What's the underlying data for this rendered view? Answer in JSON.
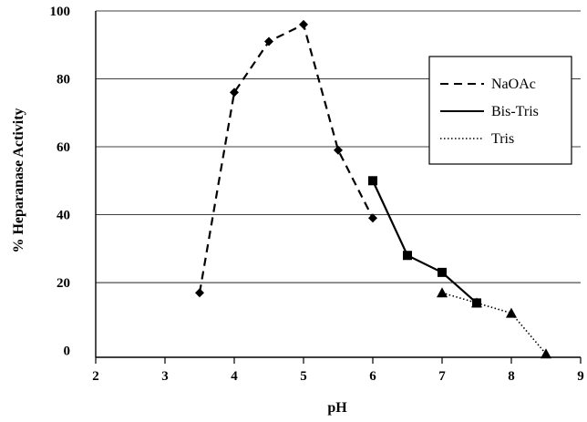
{
  "chart_data": {
    "type": "line",
    "title": "",
    "xlabel": "pH",
    "ylabel": "% Heparanase Activity",
    "xlim": [
      2,
      9
    ],
    "ylim": [
      -2,
      100
    ],
    "x_ticks": [
      "2",
      "3",
      "4",
      "5",
      "6",
      "7",
      "8",
      "9"
    ],
    "y_ticks": [
      {
        "value": 0,
        "label": "0"
      },
      {
        "value": 20,
        "label": "20"
      },
      {
        "value": 40,
        "label": "40"
      },
      {
        "value": 60,
        "label": "60"
      },
      {
        "value": 80,
        "label": "80"
      },
      {
        "value": 100,
        "label": "100"
      }
    ],
    "grid": "horizontal",
    "legend_position": "top-right",
    "series": [
      {
        "name": "NaOAc",
        "line": "dashed",
        "marker": "diamond",
        "x": [
          3.5,
          4.0,
          4.5,
          5.0,
          5.5,
          6.0
        ],
        "y": [
          17,
          76,
          91,
          96,
          59,
          39
        ]
      },
      {
        "name": "Bis-Tris",
        "line": "solid",
        "marker": "square",
        "x": [
          6.0,
          6.5,
          7.0,
          7.5
        ],
        "y": [
          50,
          28,
          23,
          14
        ]
      },
      {
        "name": "Tris",
        "line": "dotted",
        "marker": "triangle",
        "x": [
          7.0,
          7.5,
          8.0,
          8.5
        ],
        "y": [
          17,
          14,
          11,
          -1
        ]
      }
    ]
  }
}
